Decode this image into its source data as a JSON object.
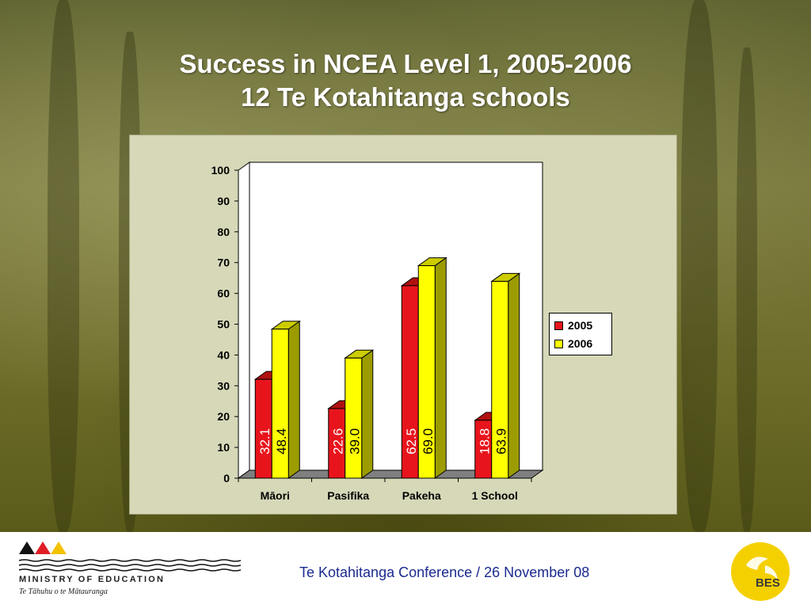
{
  "slide": {
    "title_line1": "Success in NCEA Level 1, 2005-2006",
    "title_line2": "12 Te Kotahitanga schools"
  },
  "chart_data": {
    "type": "bar",
    "categories": [
      "Māori",
      "Pasifika",
      "Pakeha",
      "1 School"
    ],
    "series": [
      {
        "name": "2005",
        "values": [
          32.1,
          22.6,
          62.5,
          18.8
        ],
        "labels": [
          "32.1",
          "22.6",
          "62.5",
          "18.8"
        ],
        "color": "#e8141c"
      },
      {
        "name": "2006",
        "values": [
          48.4,
          39.0,
          69.0,
          63.9
        ],
        "labels": [
          "48.4",
          "39.0",
          "69.0",
          "63.9"
        ],
        "color": "#ffff00"
      }
    ],
    "ylim": [
      0,
      100
    ],
    "yticks": [
      "0",
      "10",
      "20",
      "30",
      "40",
      "50",
      "60",
      "70",
      "80",
      "90",
      "100"
    ],
    "legend": "right",
    "grid": false,
    "style": "3d-bar"
  },
  "footer": {
    "text": "Te Kotahitanga Conference / 26 November 08",
    "org_name": "MINISTRY OF EDUCATION",
    "org_subtitle": "Te Tāhuhu o te Mātauranga",
    "badge": "BES"
  },
  "colors": {
    "title": "#ffffff",
    "footer_text": "#1b2a8f",
    "floor": "#7f7f7f",
    "wall": "#ffffff"
  }
}
